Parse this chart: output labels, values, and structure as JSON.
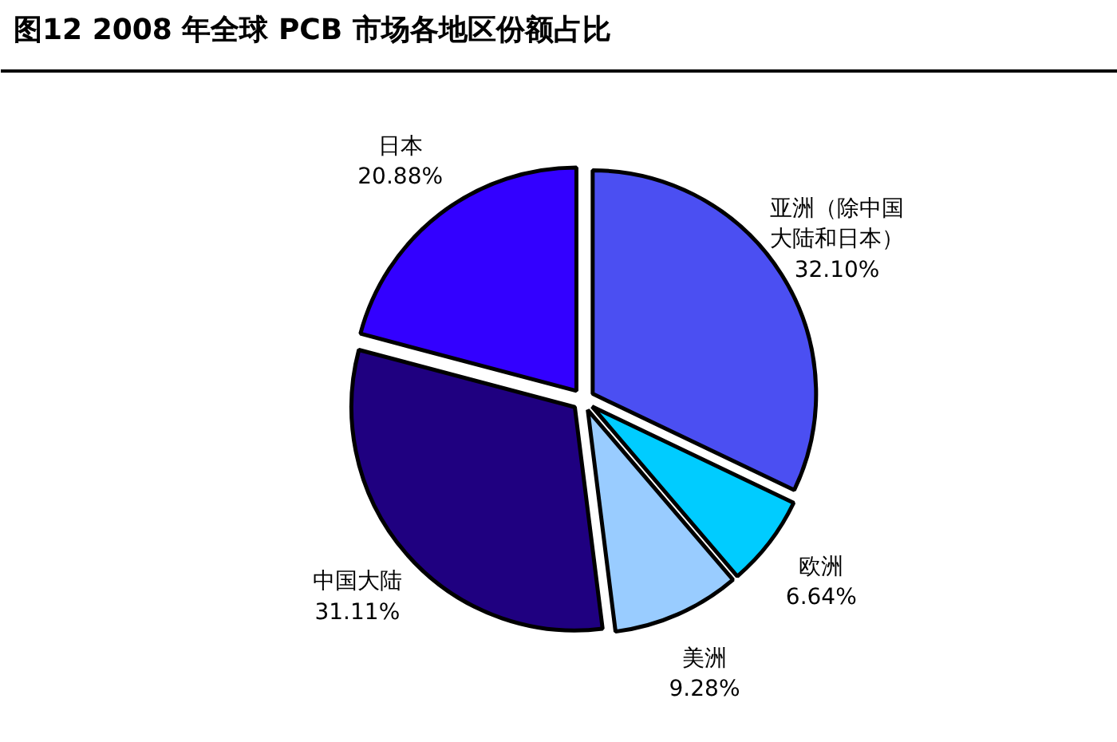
{
  "chart_data": {
    "type": "pie",
    "title": "图12  2008 年全球 PCB 市场各地区份额占比",
    "categories": [
      "亚洲（除中国大陆和日本）",
      "欧洲",
      "美洲",
      "中国大陆",
      "日本"
    ],
    "values": [
      32.1,
      6.64,
      9.28,
      31.11,
      20.88
    ],
    "colors": [
      "#4b4ff2",
      "#00ccff",
      "#99ccff",
      "#1f0080",
      "#3300ff"
    ],
    "value_labels": [
      "32.10%",
      "6.64%",
      "9.28%",
      "31.11%",
      "20.88%"
    ]
  }
}
